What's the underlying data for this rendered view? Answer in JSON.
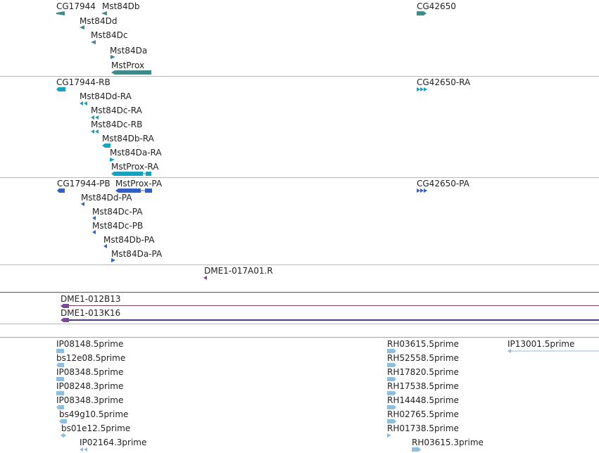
{
  "colors": {
    "gene": "#3e8b8b",
    "mrna": "#15a3c2",
    "protein": "#3060c8",
    "clone": "#7a4a9a",
    "est": "#8cbfe0",
    "separator_gray": "#bbbbbb",
    "separator_purple": "#7a4060",
    "separator_blue": "#86aed2"
  },
  "tracks": {
    "genes": [
      {
        "label": "CG17944"
      },
      {
        "label": "Mst84Db"
      },
      {
        "label": "Mst84Dd"
      },
      {
        "label": "Mst84Dc"
      },
      {
        "label": "Mst84Da"
      },
      {
        "label": "MstProx"
      },
      {
        "label": "CG42650"
      }
    ],
    "transcripts": [
      {
        "label": "CG17944-RB"
      },
      {
        "label": "Mst84Dd-RA"
      },
      {
        "label": "Mst84Dc-RA"
      },
      {
        "label": "Mst84Dc-RB"
      },
      {
        "label": "Mst84Db-RA"
      },
      {
        "label": "Mst84Da-RA"
      },
      {
        "label": "MstProx-RA"
      },
      {
        "label": "CG42650-RA"
      }
    ],
    "proteins": [
      {
        "label": "CG17944-PB"
      },
      {
        "label": "MstProx-PA"
      },
      {
        "label": "Mst84Dd-PA"
      },
      {
        "label": "Mst84Dc-PA"
      },
      {
        "label": "Mst84Dc-PB"
      },
      {
        "label": "Mst84Db-PA"
      },
      {
        "label": "Mst84Da-PA"
      },
      {
        "label": "CG42650-PA"
      }
    ],
    "clone_end": [
      {
        "label": "DME1-017A01.R"
      }
    ],
    "bac_clones": [
      {
        "label": "DME1-012B13"
      },
      {
        "label": "DME1-013K16"
      }
    ],
    "ests": [
      {
        "label": "IP08148.5prime"
      },
      {
        "label": "bs12e08.5prime"
      },
      {
        "label": "IP08348.5prime"
      },
      {
        "label": "IP08248.3prime"
      },
      {
        "label": "IP08348.3prime"
      },
      {
        "label": "bs49g10.5prime"
      },
      {
        "label": "bs01e12.5prime"
      },
      {
        "label": "IP02164.3prime"
      },
      {
        "label": "RH03615.5prime"
      },
      {
        "label": "RH52558.5prime"
      },
      {
        "label": "RH17820.5prime"
      },
      {
        "label": "RH17538.5prime"
      },
      {
        "label": "RH14448.5prime"
      },
      {
        "label": "RH02765.5prime"
      },
      {
        "label": "RH01738.5prime"
      },
      {
        "label": "RH03615.3prime"
      },
      {
        "label": "IP13001.5prime"
      }
    ]
  }
}
